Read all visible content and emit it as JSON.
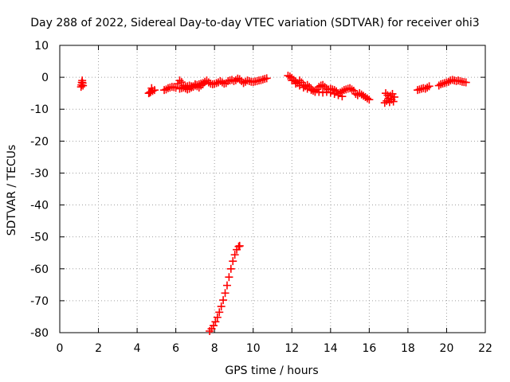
{
  "chart_data": {
    "type": "scatter",
    "title": "Day 288 of 2022, Sidereal Day-to-day VTEC variation (SDTVAR) for receiver ohi3",
    "xlabel": "GPS time / hours",
    "ylabel": "SDTVAR / TECUs",
    "xlim": [
      0,
      22
    ],
    "ylim": [
      -80,
      10
    ],
    "xticks": [
      0,
      2,
      4,
      6,
      8,
      10,
      12,
      14,
      16,
      18,
      20,
      22
    ],
    "yticks": [
      -80,
      -70,
      -60,
      -50,
      -40,
      -30,
      -20,
      -10,
      0,
      10
    ],
    "grid": true,
    "marker": "plus",
    "color": "#ff0000",
    "series": [
      {
        "name": "seg-1",
        "x": [
          1.1,
          1.12,
          1.14,
          1.16,
          1.18,
          1.2
        ],
        "y": [
          -3.0,
          -2.4,
          -1.6,
          -1.0,
          -1.8,
          -2.6
        ]
      },
      {
        "name": "seg-2",
        "x": [
          4.6,
          4.7,
          4.8,
          4.9,
          4.75,
          4.65
        ],
        "y": [
          -5.0,
          -4.6,
          -4.3,
          -4.0,
          -3.4,
          -4.8
        ]
      },
      {
        "name": "seg-3",
        "x": [
          5.4,
          5.5,
          5.6,
          5.7,
          5.8,
          5.9,
          6.0,
          6.1,
          6.2,
          6.3,
          6.4,
          6.5,
          6.6,
          6.7,
          6.8,
          6.9,
          7.0,
          7.1,
          7.2,
          7.3,
          7.4,
          7.5,
          7.6,
          7.7,
          7.8,
          7.9,
          8.0,
          8.1,
          8.2,
          8.3,
          8.4,
          8.5,
          8.6,
          8.7,
          8.8,
          8.9,
          9.0,
          9.1,
          9.2,
          9.3,
          9.4,
          9.5,
          9.6,
          9.7,
          9.8,
          9.9,
          10.0,
          10.1,
          10.2,
          10.3,
          10.4,
          10.5,
          10.6,
          10.7
        ],
        "y": [
          -4.0,
          -3.8,
          -3.4,
          -3.2,
          -3.0,
          -3.1,
          -3.3,
          -2.0,
          -1.0,
          -1.5,
          -2.6,
          -3.5,
          -3.8,
          -3.6,
          -3.2,
          -2.8,
          -2.2,
          -2.8,
          -3.2,
          -2.6,
          -2.2,
          -1.4,
          -1.0,
          -1.6,
          -2.0,
          -2.2,
          -2.1,
          -1.8,
          -1.6,
          -1.2,
          -1.6,
          -2.0,
          -1.8,
          -1.2,
          -1.0,
          -0.8,
          -1.2,
          -0.9,
          -0.4,
          -0.6,
          -1.2,
          -1.8,
          -1.4,
          -1.0,
          -1.2,
          -1.4,
          -1.5,
          -1.3,
          -1.2,
          -1.0,
          -0.9,
          -0.7,
          -0.5,
          -0.3
        ]
      },
      {
        "name": "seg-4",
        "x": [
          6.2,
          6.3,
          6.4,
          6.5,
          6.6,
          6.7,
          6.8,
          6.9,
          7.0,
          7.1,
          7.2,
          7.3,
          7.4
        ],
        "y": [
          -3.6,
          -3.4,
          -3.2,
          -3.0,
          -2.8,
          -2.6,
          -2.8,
          -3.0,
          -2.6,
          -2.4,
          -2.2,
          -2.0,
          -1.8
        ]
      },
      {
        "name": "seg-5",
        "x": [
          11.8,
          11.9,
          12.0,
          12.1,
          12.2,
          12.3,
          12.4,
          12.5,
          12.6,
          12.7,
          12.8,
          12.9,
          13.0,
          13.1,
          13.2,
          13.3,
          13.4,
          13.5,
          13.6,
          13.7,
          13.8,
          13.9,
          14.0,
          14.1,
          14.2,
          14.3,
          14.4,
          14.5,
          14.6,
          14.7,
          14.8,
          14.9,
          15.0,
          15.1,
          15.2,
          15.3,
          15.4,
          15.5,
          15.6,
          15.7,
          15.8,
          15.9,
          16.0
        ],
        "y": [
          0.5,
          0.2,
          -0.2,
          -0.8,
          -1.4,
          -1.8,
          -1.0,
          -1.6,
          -2.4,
          -2.8,
          -2.4,
          -3.0,
          -3.6,
          -4.2,
          -4.6,
          -3.8,
          -3.0,
          -2.6,
          -2.4,
          -3.0,
          -3.6,
          -3.8,
          -3.6,
          -3.8,
          -4.0,
          -4.4,
          -5.0,
          -4.8,
          -4.4,
          -4.0,
          -3.8,
          -3.6,
          -3.4,
          -3.8,
          -4.2,
          -5.2,
          -5.6,
          -5.0,
          -5.4,
          -5.8,
          -6.2,
          -6.6,
          -7.0
        ]
      },
      {
        "name": "seg-6",
        "x": [
          12.0,
          12.2,
          12.4,
          12.6,
          12.8,
          13.0,
          13.2,
          13.4,
          13.6,
          13.8,
          14.0,
          14.2,
          14.4,
          14.6
        ],
        "y": [
          -1.0,
          -2.0,
          -2.6,
          -3.2,
          -3.6,
          -4.0,
          -4.2,
          -4.6,
          -4.8,
          -4.6,
          -4.8,
          -5.2,
          -5.6,
          -6.0
        ]
      },
      {
        "name": "seg-7",
        "x": [
          16.8,
          16.9,
          17.0,
          17.1,
          17.2,
          17.3,
          16.85,
          16.95,
          17.05,
          17.15,
          17.25
        ],
        "y": [
          -8.0,
          -7.4,
          -6.6,
          -5.8,
          -5.2,
          -6.2,
          -5.0,
          -5.6,
          -7.8,
          -7.0,
          -7.6
        ]
      },
      {
        "name": "seg-8",
        "x": [
          18.5,
          18.6,
          18.7,
          18.8,
          18.9,
          19.0,
          19.1
        ],
        "y": [
          -4.0,
          -3.8,
          -3.6,
          -3.4,
          -3.6,
          -3.2,
          -2.8
        ]
      },
      {
        "name": "seg-9",
        "x": [
          19.6,
          19.7,
          19.8,
          19.9,
          20.0,
          20.1,
          20.2,
          20.3,
          20.4,
          20.5,
          20.6,
          20.7,
          20.8,
          20.9,
          21.0
        ],
        "y": [
          -2.6,
          -2.2,
          -2.0,
          -1.8,
          -1.6,
          -1.4,
          -1.0,
          -0.8,
          -1.0,
          -1.2,
          -1.0,
          -1.2,
          -1.4,
          -1.5,
          -1.6
        ]
      },
      {
        "name": "seg-10",
        "x": [
          7.75,
          7.85,
          7.95,
          8.05,
          8.15,
          8.25,
          8.35,
          8.45,
          8.55,
          8.65,
          8.75,
          8.85,
          8.95,
          9.05,
          9.15,
          9.25,
          9.3
        ],
        "y": [
          -79.5,
          -78.8,
          -77.8,
          -76.6,
          -75.2,
          -73.6,
          -71.8,
          -69.8,
          -67.6,
          -65.2,
          -62.6,
          -60.0,
          -57.6,
          -55.6,
          -54.0,
          -53.0,
          -52.8
        ]
      }
    ]
  }
}
